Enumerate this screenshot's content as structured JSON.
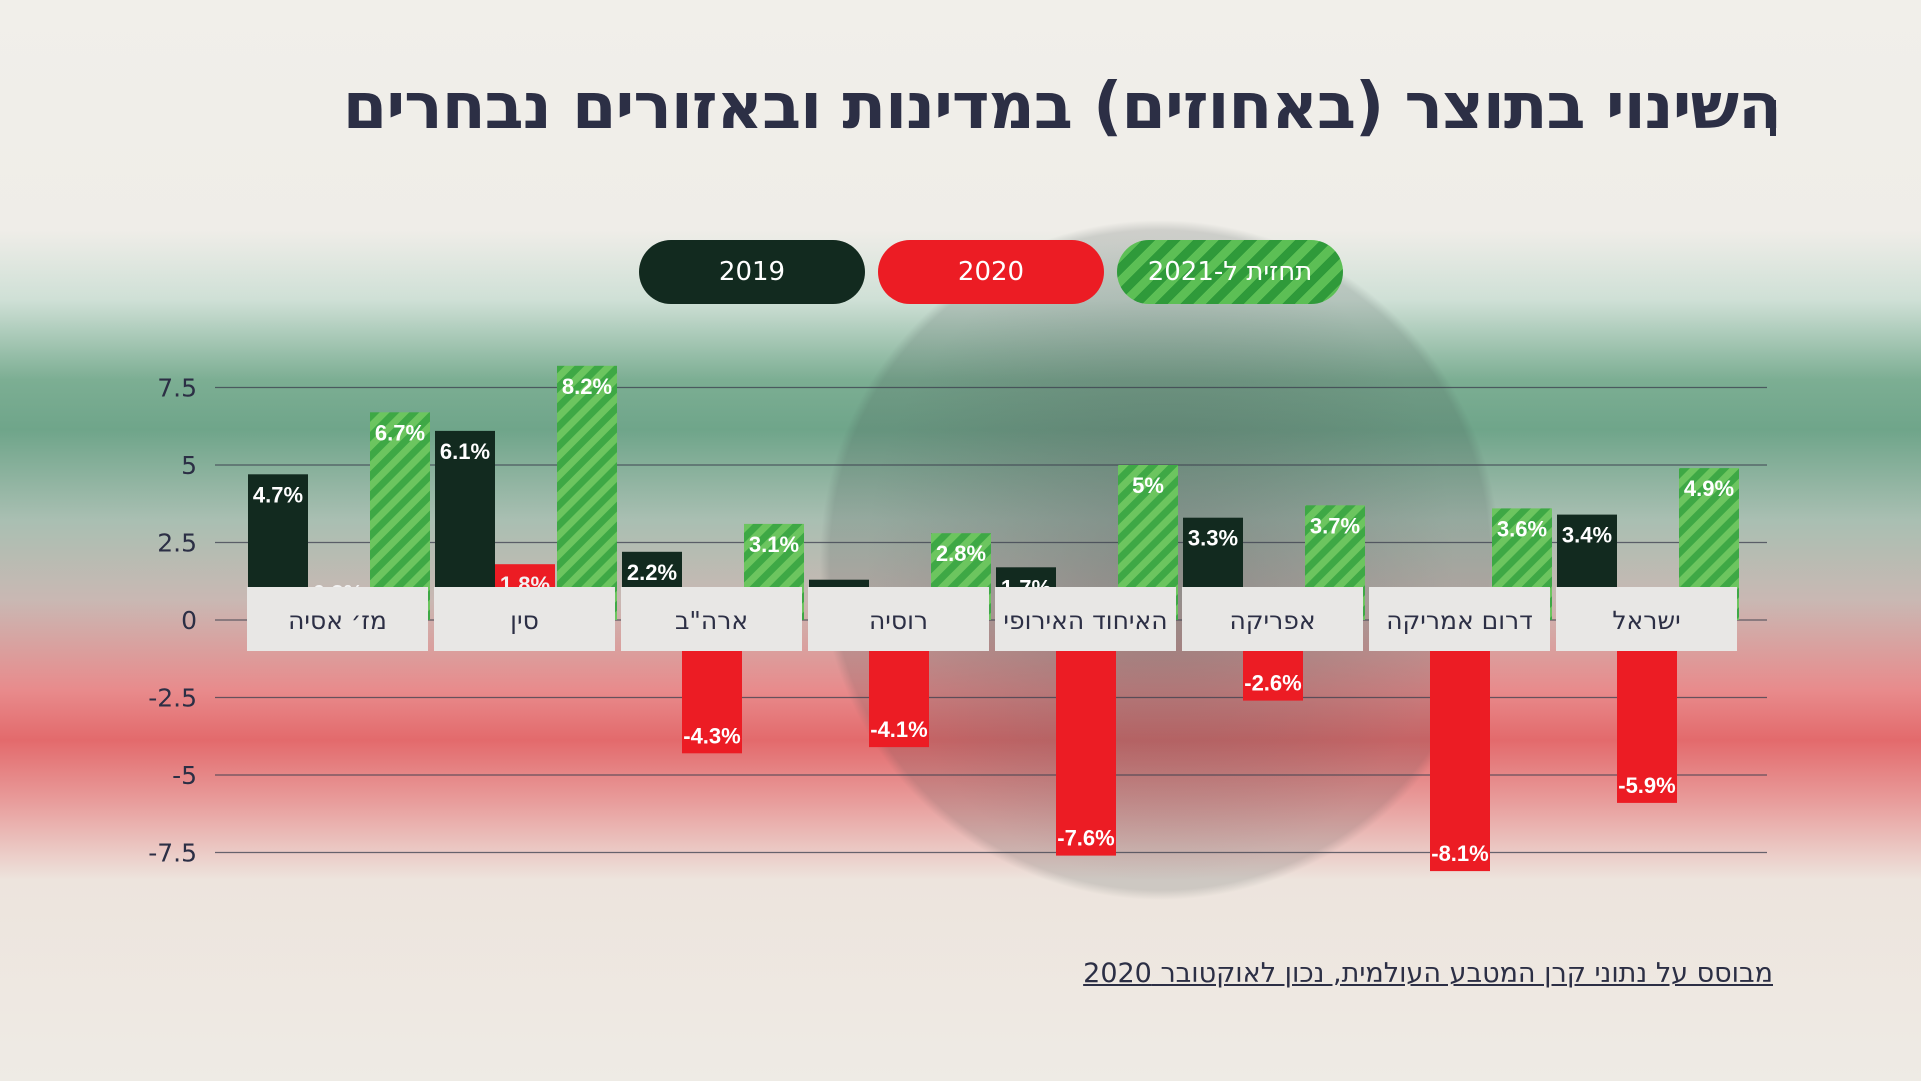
{
  "title": "השינוי בתוצר (באחוזים) במדינות ובאזורים נבחרים",
  "source_note": "מבוסס על נתוני קרן המטבע העולמית, נכון לאוקטובר 2020",
  "legend": {
    "y2019": "2019",
    "y2020": "2020",
    "y2021": "תחזית ל-2021"
  },
  "colors": {
    "y2019": "#122a1f",
    "y2020": "#ec1c24",
    "y2021": "#3ea845",
    "y2021_stripe": "#6cc55f",
    "label_bg": "#e8e7e5",
    "text_dark": "#2c2f45"
  },
  "chart_data": {
    "type": "bar",
    "title": "השינוי בתוצר (באחוזים) במדינות ובאזורים נבחרים",
    "ylim": [
      -8.5,
      8.5
    ],
    "yticks": [
      "7.5",
      "5",
      "2.5",
      "0",
      "-2.5",
      "-5",
      "-7.5"
    ],
    "ytick_values": [
      7.5,
      5,
      2.5,
      0,
      -2.5,
      -5,
      -7.5
    ],
    "grid": true,
    "legend_position": "top-center",
    "categories": [
      "מז׳ אסיה",
      "סין",
      "ארה\"ב",
      "רוסיה",
      "האיחוד האירופי",
      "אפריקה",
      "דרום אמריקה",
      "ישראל"
    ],
    "series": [
      {
        "name": "2019",
        "values": [
          4.7,
          6.1,
          2.2,
          1.3,
          1.7,
          3.3,
          0.2,
          3.4
        ],
        "labels": [
          "4.7%",
          "6.1%",
          "2.2%",
          "1.3%",
          "1.7%",
          "3.3%",
          "0.2%",
          "3.4%"
        ]
      },
      {
        "name": "2020",
        "values": [
          0.3,
          1.8,
          -4.3,
          -4.1,
          -7.6,
          -2.6,
          -8.1,
          -5.9
        ],
        "labels": [
          "0.3%",
          "1.8%",
          "-4.3%",
          "-4.1%",
          "-7.6%",
          "-2.6%",
          "-8.1%",
          "-5.9%"
        ]
      },
      {
        "name": "תחזית ל-2021",
        "values": [
          6.7,
          8.2,
          3.1,
          2.8,
          5,
          3.7,
          3.6,
          4.9
        ],
        "labels": [
          "6.7%",
          "8.2%",
          "3.1%",
          "2.8%",
          "5%",
          "3.7%",
          "3.6%",
          "4.9%"
        ]
      }
    ]
  }
}
